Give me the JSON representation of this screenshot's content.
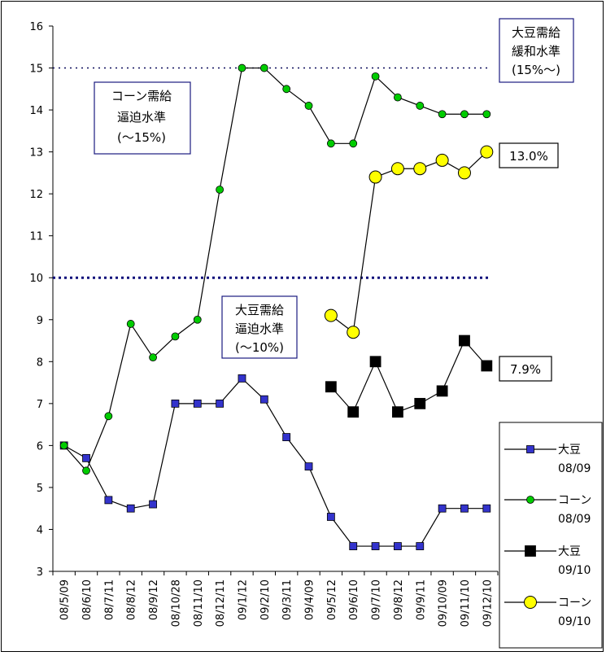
{
  "chart_data": {
    "type": "line",
    "title": "",
    "xlabel": "",
    "ylabel": "",
    "ylim": [
      3,
      16
    ],
    "yticks": [
      3,
      4,
      5,
      6,
      7,
      8,
      9,
      10,
      11,
      12,
      13,
      14,
      15,
      16
    ],
    "grid": false,
    "legend_position": "right",
    "categories": [
      "08/5/09",
      "08/6/10",
      "08/7/11",
      "08/8/12",
      "08/9/12",
      "08/10/28",
      "08/11/10",
      "08/12/11",
      "09/1/12",
      "09/2/10",
      "09/3/11",
      "09/4/09",
      "09/5/12",
      "09/6/10",
      "09/7/10",
      "09/8/12",
      "09/9/11",
      "09/10/09",
      "09/11/10",
      "09/12/10"
    ],
    "series": [
      {
        "name": "大豆",
        "name_sub": "08/09",
        "color": "#3333CC",
        "marker": "square",
        "values": [
          6.0,
          5.7,
          4.7,
          4.5,
          4.6,
          7.0,
          7.0,
          7.0,
          7.6,
          7.1,
          6.2,
          5.5,
          4.3,
          3.6,
          3.6,
          3.6,
          3.6,
          4.5,
          4.5,
          4.5
        ]
      },
      {
        "name": "コーン",
        "name_sub": "08/09",
        "color": "#00CC00",
        "marker": "circle",
        "values": [
          6.0,
          5.4,
          6.7,
          8.9,
          8.1,
          8.6,
          9.0,
          12.1,
          15.0,
          15.0,
          14.5,
          14.1,
          13.2,
          13.2,
          14.8,
          14.3,
          14.1,
          13.9,
          13.9,
          13.9
        ]
      },
      {
        "name": "大豆",
        "name_sub": "09/10",
        "color": "#000000",
        "marker": "square-large",
        "values": [
          null,
          null,
          null,
          null,
          null,
          null,
          null,
          null,
          null,
          null,
          null,
          null,
          7.4,
          6.8,
          8.0,
          6.8,
          7.0,
          7.3,
          8.5,
          7.9
        ]
      },
      {
        "name": "コーン",
        "name_sub": "09/10",
        "color": "#FFFF00",
        "marker": "circle-large",
        "values": [
          null,
          null,
          null,
          null,
          null,
          null,
          null,
          null,
          null,
          null,
          null,
          null,
          9.1,
          8.7,
          12.4,
          12.6,
          12.6,
          12.8,
          12.5,
          13.0
        ]
      }
    ],
    "reference_lines": [
      {
        "y": 15,
        "style": "dotted",
        "color": "#0A0A5A"
      },
      {
        "y": 10,
        "style": "dotted-bold",
        "color": "#0A0A7A"
      }
    ],
    "annotations": [
      {
        "id": "corn-tight",
        "lines": [
          "コーン需給",
          "逼迫水準",
          "(～15%)"
        ]
      },
      {
        "id": "soy-tight",
        "lines": [
          "大豆需給",
          "逼迫水準",
          "(～10%)"
        ]
      },
      {
        "id": "soy-ease",
        "lines": [
          "大豆需給",
          "緩和水準",
          "(15%～)"
        ]
      }
    ],
    "callouts": [
      {
        "id": "corn-last",
        "text": "13.0%"
      },
      {
        "id": "soy-last",
        "text": "7.9%"
      }
    ]
  }
}
